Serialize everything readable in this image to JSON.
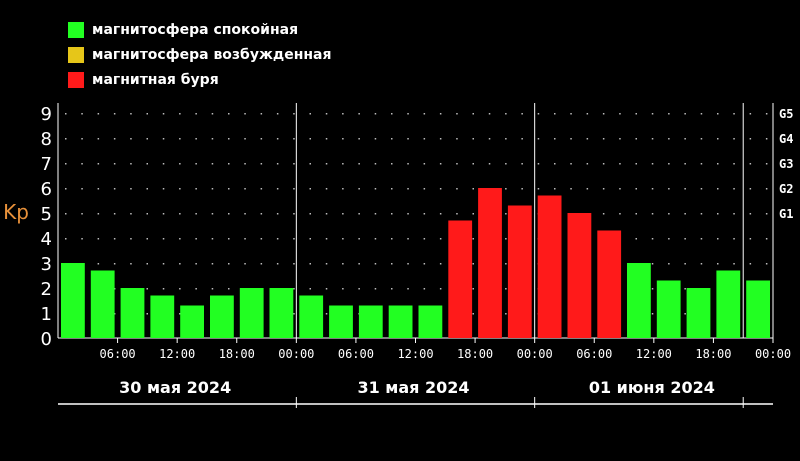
{
  "legend": [
    {
      "label": "магнитосфера спокойная",
      "color": "#22ff22"
    },
    {
      "label": "магнитосфера возбужденная",
      "color": "#e6c619"
    },
    {
      "label": "магнитная буря",
      "color": "#ff1a1a"
    }
  ],
  "chart_data": {
    "type": "bar",
    "ylabel": "Kp",
    "ylim": [
      0,
      9.4
    ],
    "yticks": [
      "0",
      "1",
      "2",
      "3",
      "4",
      "5",
      "6",
      "7",
      "8",
      "9"
    ],
    "g_scale": [
      "G1",
      "G2",
      "G3",
      "G4",
      "G5"
    ],
    "time_ticks": [
      "06:00",
      "12:00",
      "18:00",
      "00:00",
      "06:00",
      "12:00",
      "18:00",
      "00:00",
      "06:00",
      "12:00",
      "18:00",
      "00:00"
    ],
    "days": [
      "30 мая 2024",
      "31 мая 2024",
      "01 июня 2024"
    ],
    "values": [
      3.0,
      2.7,
      2.0,
      1.7,
      1.3,
      1.7,
      2.0,
      2.0,
      1.7,
      1.3,
      1.3,
      1.3,
      1.3,
      4.7,
      6.0,
      5.3,
      5.7,
      5.0,
      4.3,
      3.0,
      2.3,
      2.0,
      2.7,
      2.3
    ],
    "levels": [
      "quiet",
      "quiet",
      "quiet",
      "quiet",
      "quiet",
      "quiet",
      "quiet",
      "quiet",
      "quiet",
      "quiet",
      "quiet",
      "quiet",
      "quiet",
      "storm",
      "storm",
      "storm",
      "storm",
      "storm",
      "storm",
      "quiet",
      "quiet",
      "quiet",
      "quiet",
      "quiet"
    ],
    "level_colors": {
      "quiet": "#22ff22",
      "active": "#e6c619",
      "storm": "#ff1a1a"
    },
    "ylabel_color": "#e8913a",
    "grid": true
  }
}
